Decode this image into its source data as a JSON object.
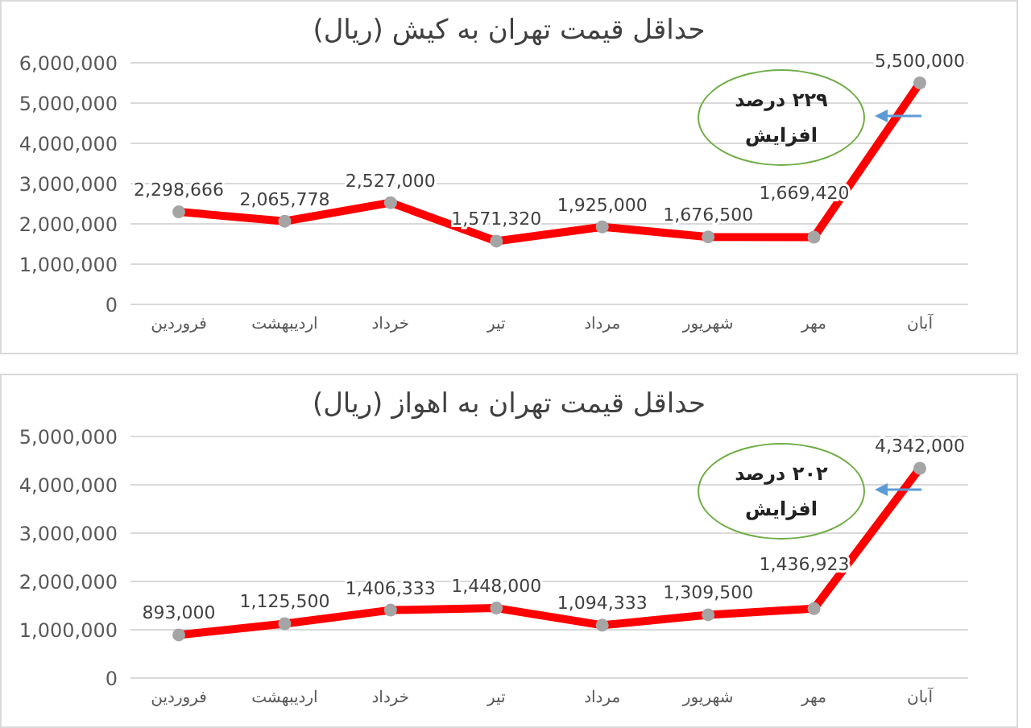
{
  "chart_data": [
    {
      "type": "line",
      "title": "حداقل قیمت تهران به کیش (ریال)",
      "categories": [
        "فروردین",
        "اردیبهشت",
        "خرداد",
        "تیر",
        "مرداد",
        "شهریور",
        "مهر",
        "آبان"
      ],
      "series": [
        {
          "color": "#ff0000",
          "values": [
            2298666,
            2065778,
            2527000,
            1571320,
            1925000,
            1676500,
            1669420,
            5500000
          ],
          "value_labels": [
            "2,298,666",
            "2,065,778",
            "2,527,000",
            "1,571,320",
            "1,925,000",
            "1,676,500",
            "1,669,420",
            "5,500,000"
          ]
        }
      ],
      "ylim": [
        0,
        6000000
      ],
      "yticks": [
        {
          "value": 0,
          "label": "0"
        },
        {
          "value": 1000000,
          "label": "1,000,000"
        },
        {
          "value": 2000000,
          "label": "2,000,000"
        },
        {
          "value": 3000000,
          "label": "3,000,000"
        },
        {
          "value": 4000000,
          "label": "4,000,000"
        },
        {
          "value": 5000000,
          "label": "5,000,000"
        },
        {
          "value": 6000000,
          "label": "6,000,000"
        }
      ],
      "grid": "y",
      "marker": "circle",
      "annotations": [
        "۲۲۹ درصد افزایش"
      ]
    },
    {
      "type": "line",
      "title": "حداقل قیمت تهران به اهواز (ریال)",
      "categories": [
        "فروردین",
        "اردیبهشت",
        "خرداد",
        "تیر",
        "مرداد",
        "شهریور",
        "مهر",
        "آبان"
      ],
      "series": [
        {
          "color": "#ff0000",
          "values": [
            893000,
            1125500,
            1406333,
            1448000,
            1094333,
            1309500,
            1436923,
            4342000
          ],
          "value_labels": [
            "893,000",
            "1,125,500",
            "1,406,333",
            "1,448,000",
            "1,094,333",
            "1,309,500",
            "1,436,923",
            "4,342,000"
          ]
        }
      ],
      "ylim": [
        0,
        5000000
      ],
      "yticks": [
        {
          "value": 0,
          "label": "0"
        },
        {
          "value": 1000000,
          "label": "1,000,000"
        },
        {
          "value": 2000000,
          "label": "2,000,000"
        },
        {
          "value": 3000000,
          "label": "3,000,000"
        },
        {
          "value": 4000000,
          "label": "4,000,000"
        },
        {
          "value": 5000000,
          "label": "5,000,000"
        }
      ],
      "grid": "y",
      "marker": "circle",
      "annotations": [
        "۲۰۲ درصد افزایش"
      ]
    }
  ]
}
